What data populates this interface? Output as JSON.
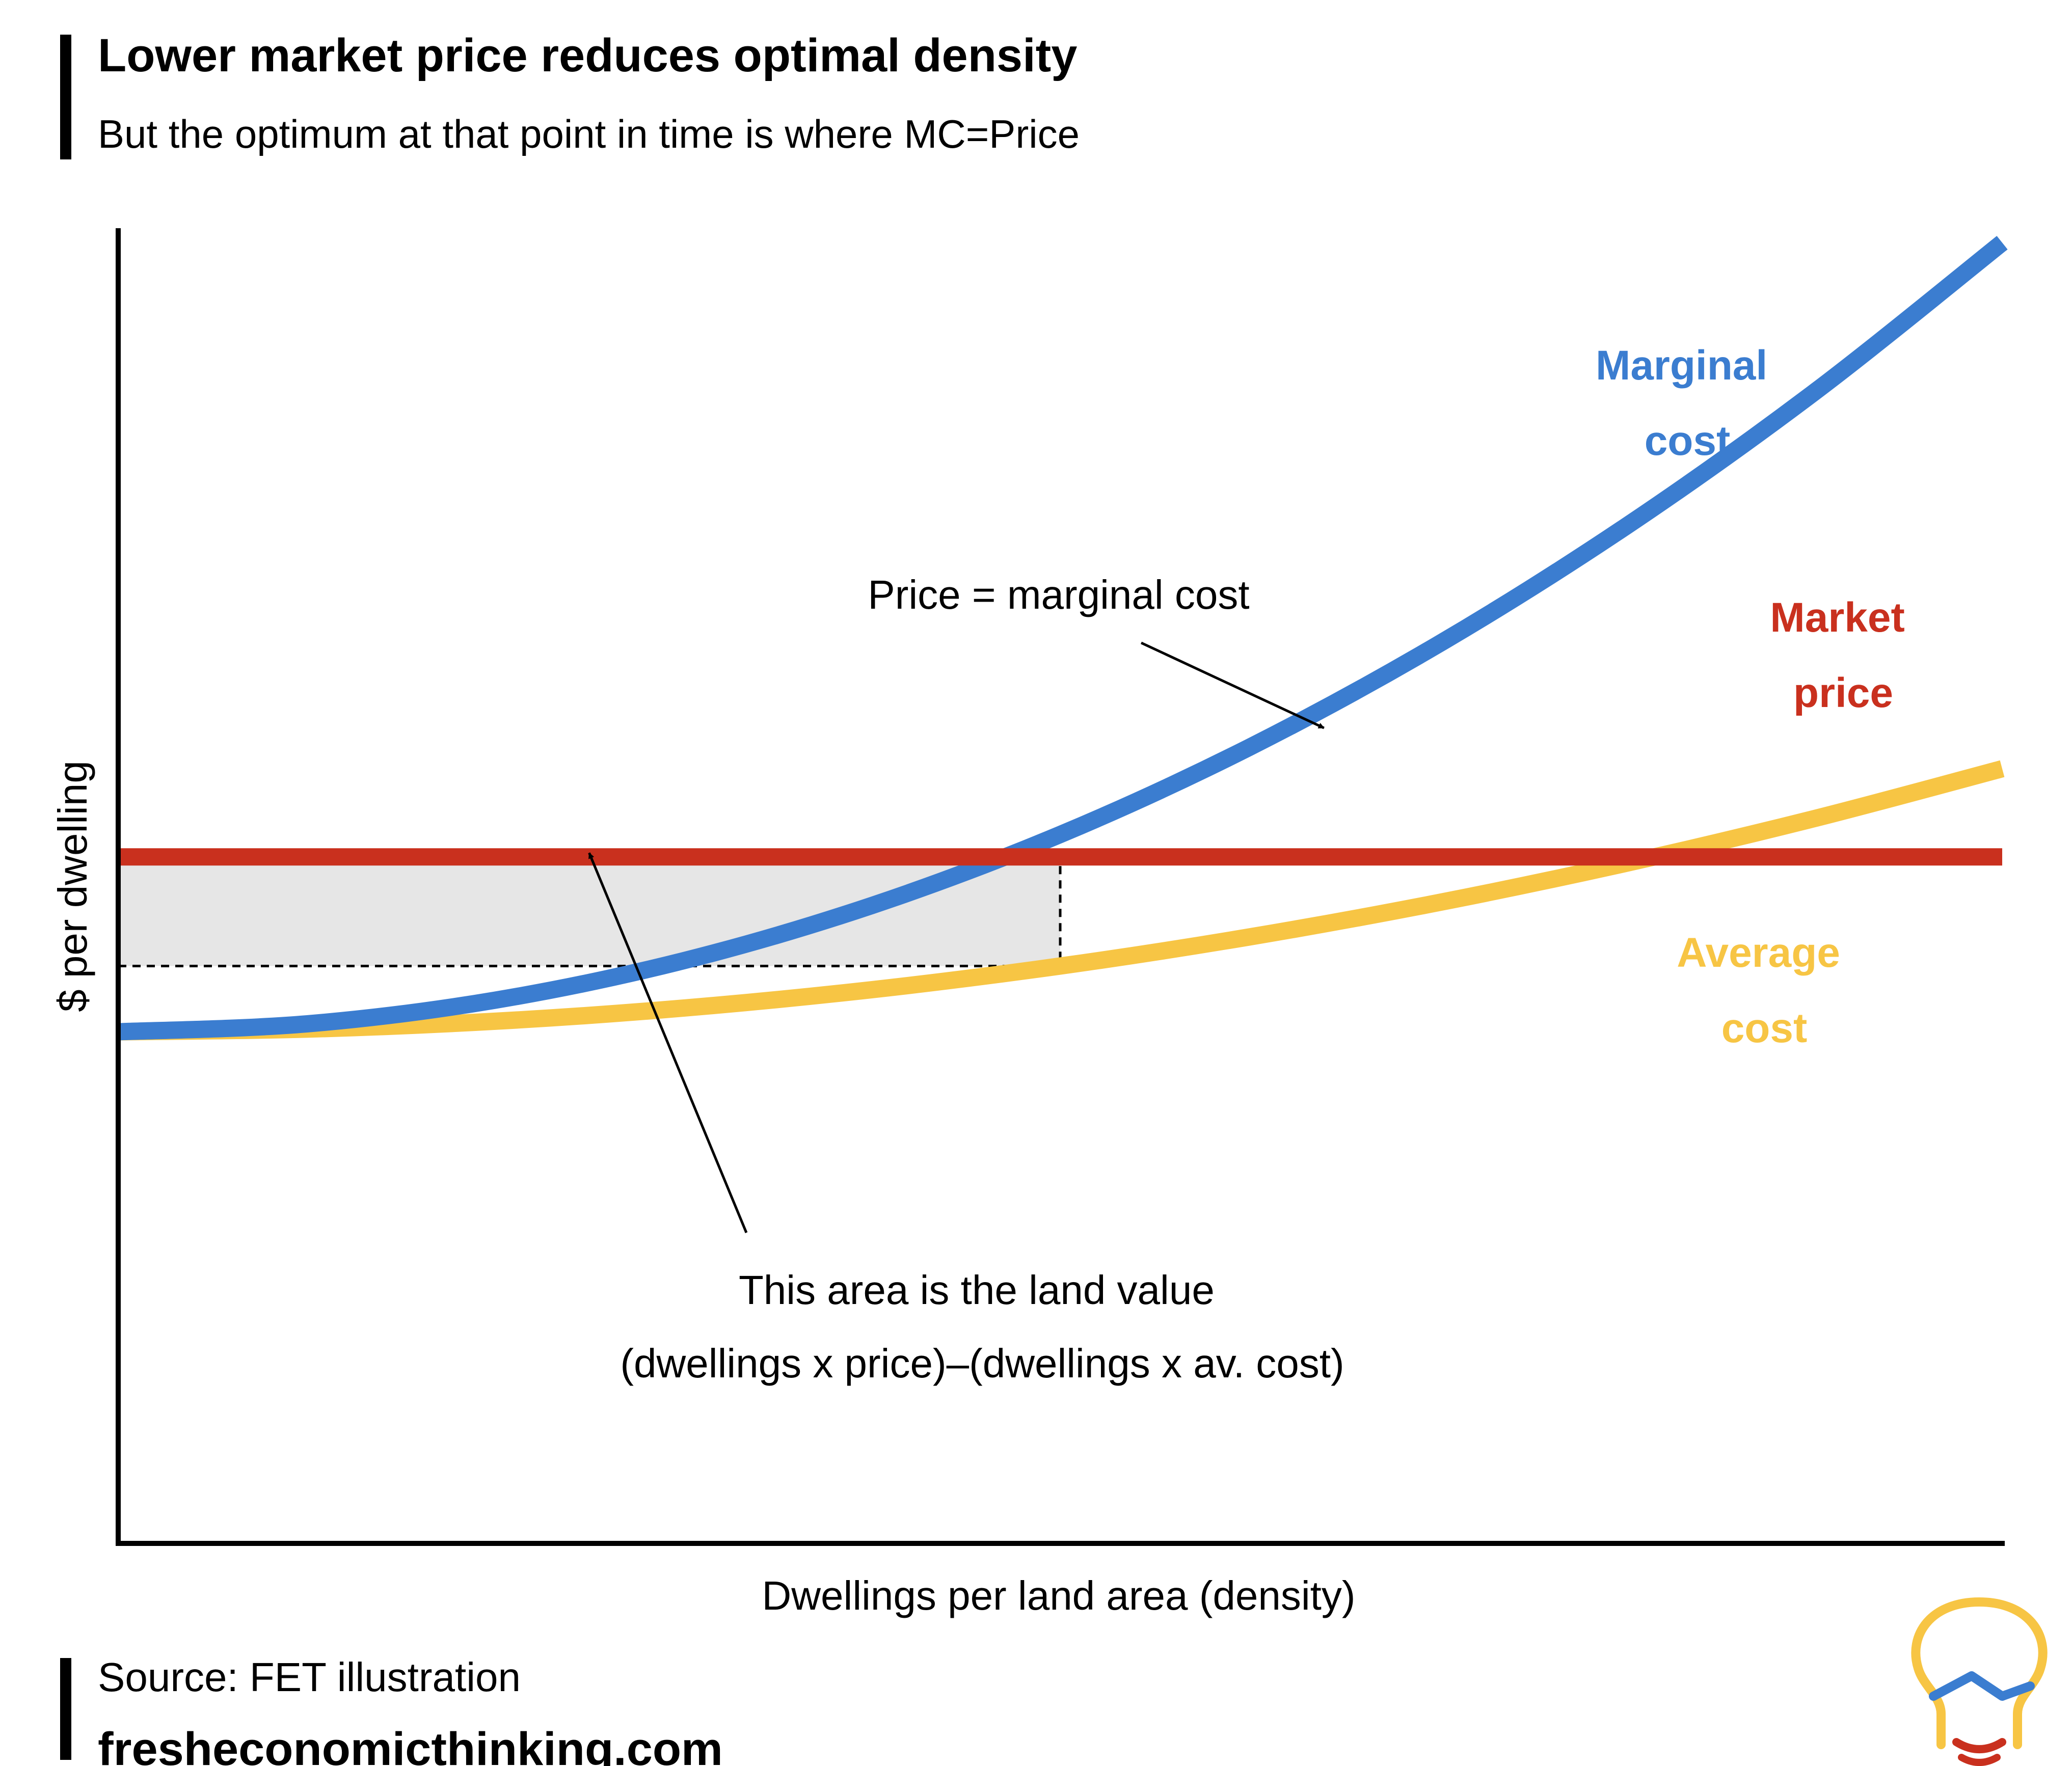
{
  "header": {
    "title": "Lower market price reduces optimal density",
    "subtitle": "But the optimum at that point in time is where MC=Price"
  },
  "chart_data": {
    "type": "line",
    "title": "Lower market price reduces optimal density",
    "subtitle": "But the optimum at that point in time is where MC=Price",
    "xlabel": "Dwellings per land area (density)",
    "ylabel": "$ per dwelling",
    "xlim": [
      0,
      100
    ],
    "ylim": [
      0,
      100
    ],
    "grid": false,
    "axis_ticks": false,
    "series": [
      {
        "name": "Marginal cost",
        "label_lines": [
          "Marginal",
          "cost"
        ],
        "color": "#3B7DD0",
        "x": [
          0,
          10,
          20,
          30,
          40,
          50,
          60,
          70,
          80,
          90,
          100
        ],
        "values": [
          38.9,
          39.5,
          41.3,
          44.3,
          48.5,
          53.9,
          60.5,
          68.3,
          77.3,
          87.5,
          98.9
        ]
      },
      {
        "name": "Market price",
        "label_lines": [
          "Market",
          "price"
        ],
        "color": "#C9301E",
        "x": [
          0,
          100
        ],
        "values": [
          52.2,
          52.2
        ]
      },
      {
        "name": "Average cost",
        "label_lines": [
          "Average",
          "cost"
        ],
        "color": "#F7C544",
        "x": [
          0,
          10,
          20,
          30,
          40,
          50,
          60,
          70,
          80,
          90,
          100
        ],
        "values": [
          38.9,
          39.1,
          39.7,
          40.7,
          42.1,
          43.9,
          46.1,
          48.7,
          51.7,
          55.1,
          58.9
        ]
      }
    ],
    "shaded_region": {
      "description": "land value",
      "x": [
        0,
        50
      ],
      "y": [
        43.9,
        52.2
      ],
      "color": "#E6E6E6"
    },
    "annotations": [
      {
        "name": "price-equals-mc",
        "lines": [
          "Price = marginal cost"
        ],
        "arrow_to": [
          64,
          62
        ]
      },
      {
        "name": "land-value",
        "lines": [
          "This area is the land value",
          "(dwellings x price)–(dwellings x av. cost)"
        ],
        "arrow_to": [
          25,
          52.5
        ]
      }
    ]
  },
  "footer": {
    "source": "Source: FET illustration",
    "website": "fresheconomicthinking.com"
  },
  "logo": {
    "name": "lightbulb-logo",
    "colors": {
      "bulb": "#F7C544",
      "trend": "#3B7DD0",
      "base": "#C9301E"
    }
  }
}
